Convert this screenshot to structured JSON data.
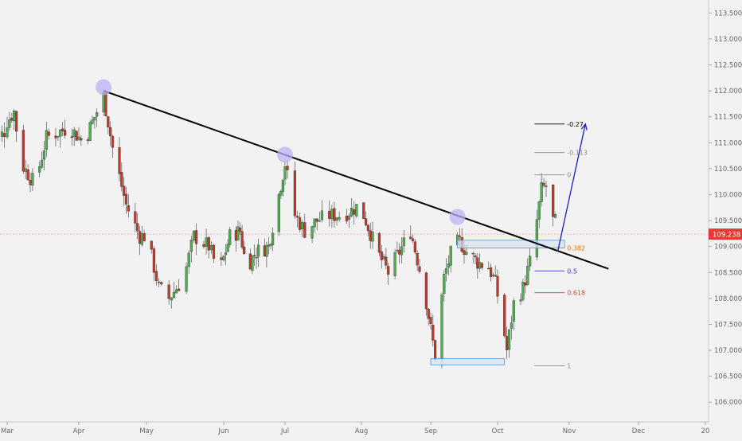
{
  "chart_data": {
    "type": "candlestick",
    "symbol_last_price": "109.238",
    "y_axis": {
      "ticks": [
        "113.500",
        "113.000",
        "112.500",
        "112.000",
        "111.500",
        "111.000",
        "110.500",
        "110.000",
        "109.500",
        "109.000",
        "108.500",
        "108.000",
        "107.500",
        "107.000",
        "106.500",
        "106.000"
      ],
      "range": [
        105.62,
        113.75
      ]
    },
    "x_axis": {
      "ticks": [
        "Mar",
        "Apr",
        "May",
        "Jun",
        "Jul",
        "Aug",
        "Sep",
        "Oct",
        "Nov",
        "Dec",
        "20"
      ]
    },
    "price_line": 109.238,
    "trendline": {
      "from": {
        "date": "Apr 12",
        "price": 112.0
      },
      "to": {
        "date": "Nov 18",
        "price": 108.57
      }
    },
    "pivot_markers": [
      {
        "date": "Apr 12",
        "price": 112.07
      },
      {
        "date": "Jul 01",
        "price": 110.77
      },
      {
        "date": "Sep 13",
        "price": 109.57
      }
    ],
    "fibonacci": [
      {
        "label": "-0.27",
        "price": 111.36,
        "color": "#000000"
      },
      {
        "label": "-0.113",
        "price": 110.81,
        "color": "#8a8a8a"
      },
      {
        "label": "0",
        "price": 110.38,
        "color": "#8a8a8a"
      },
      {
        "label": "0.382",
        "price": 108.97,
        "color": "#ff6d00"
      },
      {
        "label": "0.5",
        "price": 108.53,
        "color": "#2d36d8"
      },
      {
        "label": "0.618",
        "price": 108.11,
        "color": "#e53935"
      },
      {
        "label": "1",
        "price": 106.7,
        "color": "#8a8a8a"
      }
    ],
    "zones": [
      {
        "name": "support-zone-lower",
        "from": "Sep 01",
        "to": "Oct 04",
        "low": 106.72,
        "high": 106.84
      },
      {
        "name": "retest-zone",
        "from": "Sep 13",
        "to": "Oct 30",
        "low": 108.97,
        "high": 109.12
      }
    ],
    "projection_arrow": {
      "from": {
        "date": "Oct 27",
        "price": 108.9
      },
      "to": {
        "date": "Nov 08",
        "price": 111.36
      }
    },
    "colors": {
      "up": "#4caf50",
      "down": "#c0392b",
      "trendline": "#000000",
      "arrow": "#1a22b8",
      "price_label_bg": "#e53935",
      "zone_fill": "#d6e4f7",
      "zone_border": "#5b8fd6",
      "pivot_fill": "#b9b3f2"
    }
  }
}
